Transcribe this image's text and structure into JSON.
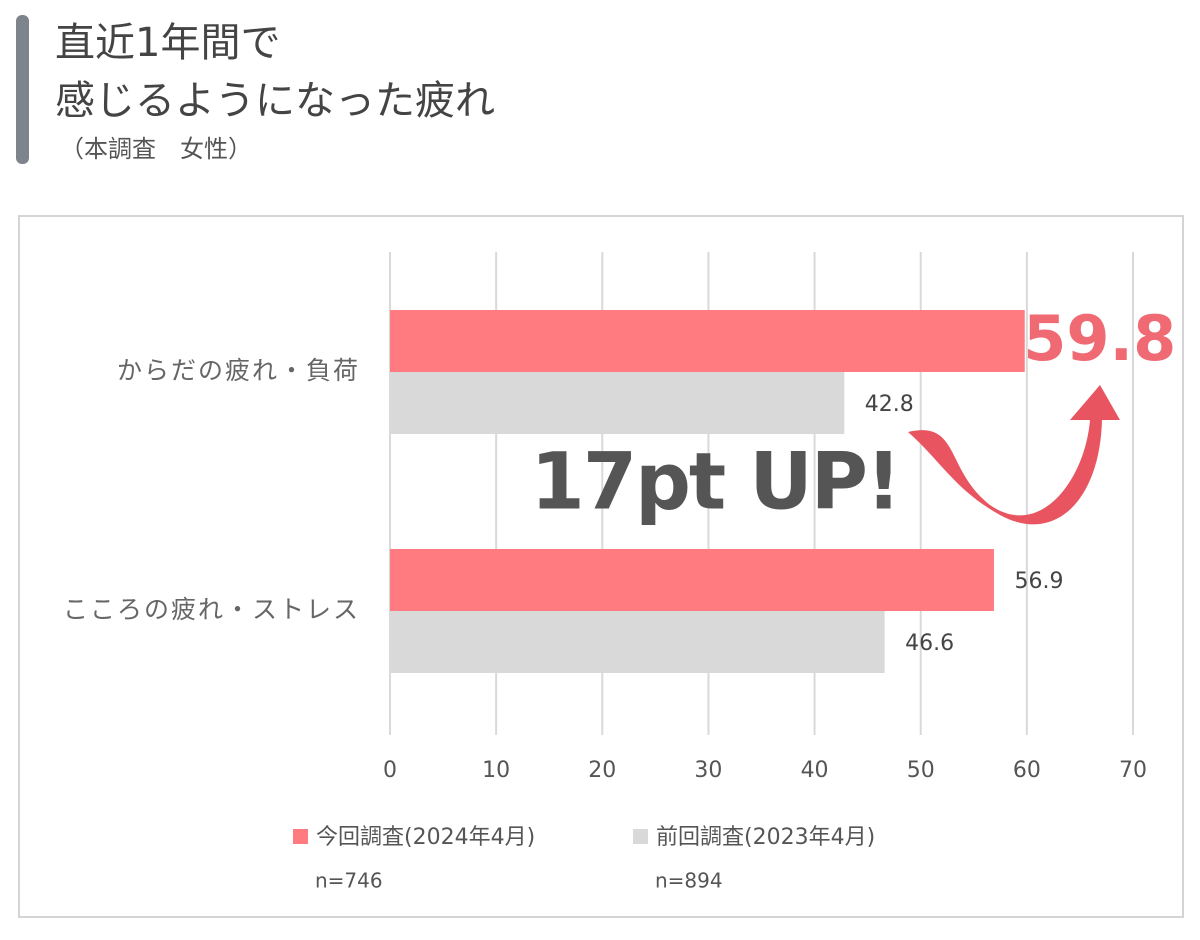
{
  "chart_data": {
    "type": "hbar",
    "title": [
      "直近1年間で",
      "感じるようになった疲れ"
    ],
    "subtitle": "（本調査　女性）",
    "annotation": "17pt UP!",
    "categories": [
      "からだの疲れ・負荷",
      "こころの疲れ・ストレス"
    ],
    "series": [
      {
        "name": "今回調査(2024年4月)",
        "sample": "n=746",
        "color": "#ff7b7f",
        "values": [
          59.8,
          56.9
        ]
      },
      {
        "name": "前回調査(2023年4月)",
        "sample": "n=894",
        "color": "#d9d9d9",
        "values": [
          42.8,
          46.6
        ]
      }
    ],
    "xlim": [
      0,
      70
    ],
    "xticks": [
      0,
      10,
      20,
      30,
      40,
      50,
      60,
      70
    ],
    "grid": true
  }
}
